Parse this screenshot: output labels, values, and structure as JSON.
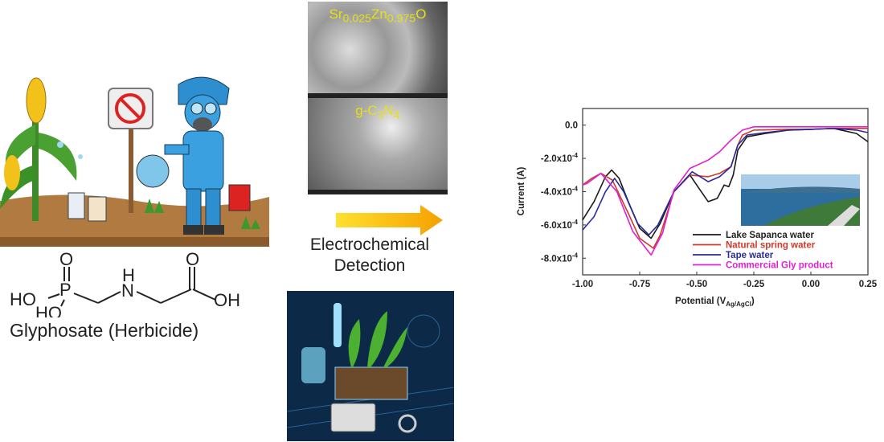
{
  "left_panel": {
    "illustration": "farmer-spraying-herbicide",
    "molecule_atoms": {
      "o_top_p": "O",
      "p": "P",
      "ho1": "HO",
      "ho2": "HO",
      "h": "H",
      "n": "N",
      "o_top_c": "O",
      "oh": "OH"
    },
    "molecule_caption": "Glyphosate (Herbicide)"
  },
  "middle_panel": {
    "sem_top_label": {
      "base1": "Sr",
      "sub1": "0.025",
      "base2": "Zn",
      "sub2": "0.975",
      "base3": "O"
    },
    "sem_bottom_label": {
      "base1": "g-C",
      "sub1": "3",
      "base2": "N",
      "sub2": "4"
    },
    "arrow_color": "#f5b800",
    "caption_line1": "Electrochemical",
    "caption_line2": "Detection",
    "bottom_illustration": "plant-sensor-lab"
  },
  "chart_data": {
    "type": "line",
    "title": "",
    "xlabel": "Potential (V",
    "xlabel_sub": "Ag/AgCl",
    "xlabel_close": ")",
    "ylabel": "Current (A)",
    "xlim": [
      -1.0,
      0.25
    ],
    "ylim": [
      -0.0009,
      0.0001
    ],
    "x_ticks": [
      -1.0,
      -0.75,
      -0.5,
      -0.25,
      0.0,
      0.25
    ],
    "x_tick_labels": [
      "-1.00",
      "-0.75",
      "-0.50",
      "-0.25",
      "0.00",
      "0.25"
    ],
    "y_ticks": [
      0,
      -0.0002,
      -0.0004,
      -0.0006,
      -0.0008
    ],
    "y_tick_labels": [
      {
        "mant": "0.0",
        "exp": ""
      },
      {
        "mant": "-2.0x10",
        "exp": "-4"
      },
      {
        "mant": "-4.0x10",
        "exp": "-4"
      },
      {
        "mant": "-6.0x10",
        "exp": "-4"
      },
      {
        "mant": "-8.0x10",
        "exp": "-4"
      }
    ],
    "grid": false,
    "legend_position": "bottom-right",
    "inset": "lake-photo",
    "series": [
      {
        "name": "Lake Sapanca water",
        "color": "#1a1a1a",
        "x": [
          -1.0,
          -0.95,
          -0.9,
          -0.873,
          -0.84,
          -0.8,
          -0.75,
          -0.7,
          -0.66,
          -0.6,
          -0.53,
          -0.49,
          -0.45,
          -0.41,
          -0.38,
          -0.36,
          -0.34,
          -0.32,
          -0.28,
          -0.2,
          -0.1,
          0.0,
          0.1,
          0.2,
          0.25
        ],
        "y": [
          -0.00057,
          -0.00046,
          -0.00031,
          -0.00027,
          -0.00032,
          -0.00046,
          -0.00062,
          -0.00068,
          -0.00059,
          -0.0004,
          -0.0003,
          -0.00038,
          -0.00046,
          -0.00044,
          -0.00036,
          -0.00037,
          -0.0003,
          -0.00015,
          -7e-05,
          -5e-05,
          -3e-05,
          -2.5e-05,
          -2e-05,
          -5e-05,
          -0.0001
        ]
      },
      {
        "name": "Natural spring water",
        "color": "#d03a2a",
        "x": [
          -1.0,
          -0.96,
          -0.92,
          -0.87,
          -0.8,
          -0.75,
          -0.69,
          -0.66,
          -0.6,
          -0.53,
          -0.45,
          -0.4,
          -0.35,
          -0.32,
          -0.3,
          -0.25,
          -0.1,
          0.0,
          0.1,
          0.25
        ],
        "y": [
          -0.00036,
          -0.00032,
          -0.00029,
          -0.00033,
          -0.00053,
          -0.00068,
          -0.00074,
          -0.00066,
          -0.0004,
          -0.0003,
          -0.00031,
          -0.00029,
          -0.00025,
          -0.00012,
          -6e-05,
          -3e-05,
          -2.5e-05,
          -2.5e-05,
          -2e-05,
          -2e-05
        ]
      },
      {
        "name": "Tape water",
        "color": "#2a2a9a",
        "x": [
          -1.0,
          -0.95,
          -0.9,
          -0.86,
          -0.82,
          -0.76,
          -0.71,
          -0.67,
          -0.6,
          -0.52,
          -0.45,
          -0.4,
          -0.35,
          -0.32,
          -0.28,
          -0.2,
          -0.1,
          0.0,
          0.1,
          0.2,
          0.25
        ],
        "y": [
          -0.00063,
          -0.00055,
          -0.0004,
          -0.00032,
          -0.0004,
          -0.00059,
          -0.00066,
          -0.0006,
          -0.0004,
          -0.00028,
          -0.00034,
          -0.00031,
          -0.00025,
          -0.00012,
          -6e-05,
          -4.5e-05,
          -3e-05,
          -2.5e-05,
          -2e-05,
          -3e-05,
          -4.5e-05
        ]
      },
      {
        "name": "Commercial Gly product",
        "color": "#e020d0",
        "x": [
          -1.0,
          -0.98,
          -0.92,
          -0.85,
          -0.78,
          -0.7,
          -0.65,
          -0.6,
          -0.53,
          -0.45,
          -0.4,
          -0.35,
          -0.3,
          -0.25,
          -0.1,
          0.0,
          0.1,
          0.25
        ],
        "y": [
          -0.00036,
          -0.00035,
          -0.00029,
          -0.0004,
          -0.00064,
          -0.00078,
          -0.00065,
          -0.00039,
          -0.00026,
          -0.00021,
          -0.00016,
          -9e-05,
          -3e-05,
          -1e-05,
          -1e-05,
          -1e-05,
          -1e-05,
          -1e-05
        ]
      }
    ]
  }
}
